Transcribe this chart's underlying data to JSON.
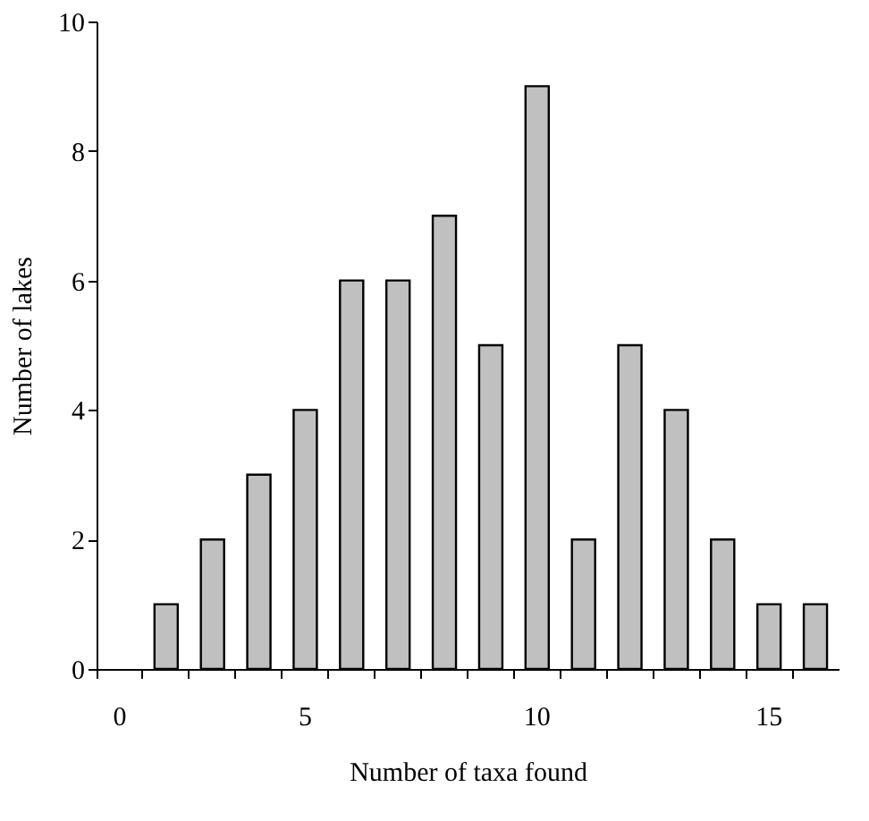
{
  "chart_data": {
    "type": "bar",
    "xlabel": "Number of taxa found",
    "ylabel": "Number of lakes",
    "categories": [
      "0",
      null,
      null,
      null,
      "5",
      null,
      null,
      null,
      null,
      "10",
      null,
      null,
      null,
      null,
      "15",
      null
    ],
    "values": [
      null,
      1,
      2,
      3,
      4,
      6,
      6,
      7,
      5,
      9,
      2,
      5,
      4,
      2,
      1,
      1
    ],
    "color": "#c0c0c0",
    "ylim": [
      0,
      10
    ],
    "yticks": [
      0,
      2,
      4,
      6,
      8,
      10
    ],
    "grid": false
  }
}
